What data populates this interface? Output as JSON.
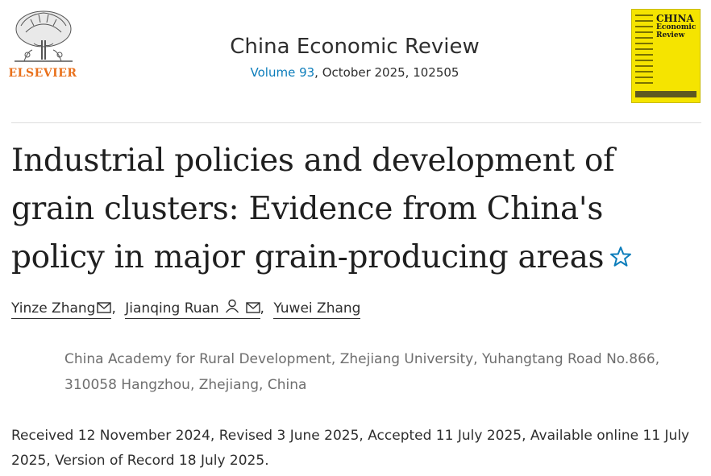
{
  "header": {
    "publisher": "ELSEVIER",
    "journal_title": "China Economic Review",
    "volume_link": "Volume 93",
    "issue_rest": ", October 2025, 102505",
    "cover": {
      "line1": "CHINA",
      "line2": "Economic",
      "line3": "Review"
    },
    "colors": {
      "publisher": "#e9711c",
      "link": "#0c7dbb",
      "cover": "#f5e400"
    }
  },
  "article": {
    "title": "Industrial policies and development of grain clusters: Evidence from China's policy in major grain-producing areas",
    "authors": [
      {
        "name": "Yinze Zhang",
        "icons": [
          "mail-icon"
        ]
      },
      {
        "name": "Jianqing Ruan",
        "icons": [
          "person-icon",
          "mail-icon"
        ]
      },
      {
        "name": "Yuwei Zhang",
        "icons": []
      }
    ],
    "separator": ",",
    "affiliation": "China Academy for Rural Development, Zhejiang University, Yuhangtang Road No.866, 310058 Hangzhou, Zhejiang, China",
    "history": "Received 12 November 2024, Revised 3 June 2025, Accepted 11 July 2025, Available online 11 July 2025, Version of Record 18 July 2025."
  }
}
